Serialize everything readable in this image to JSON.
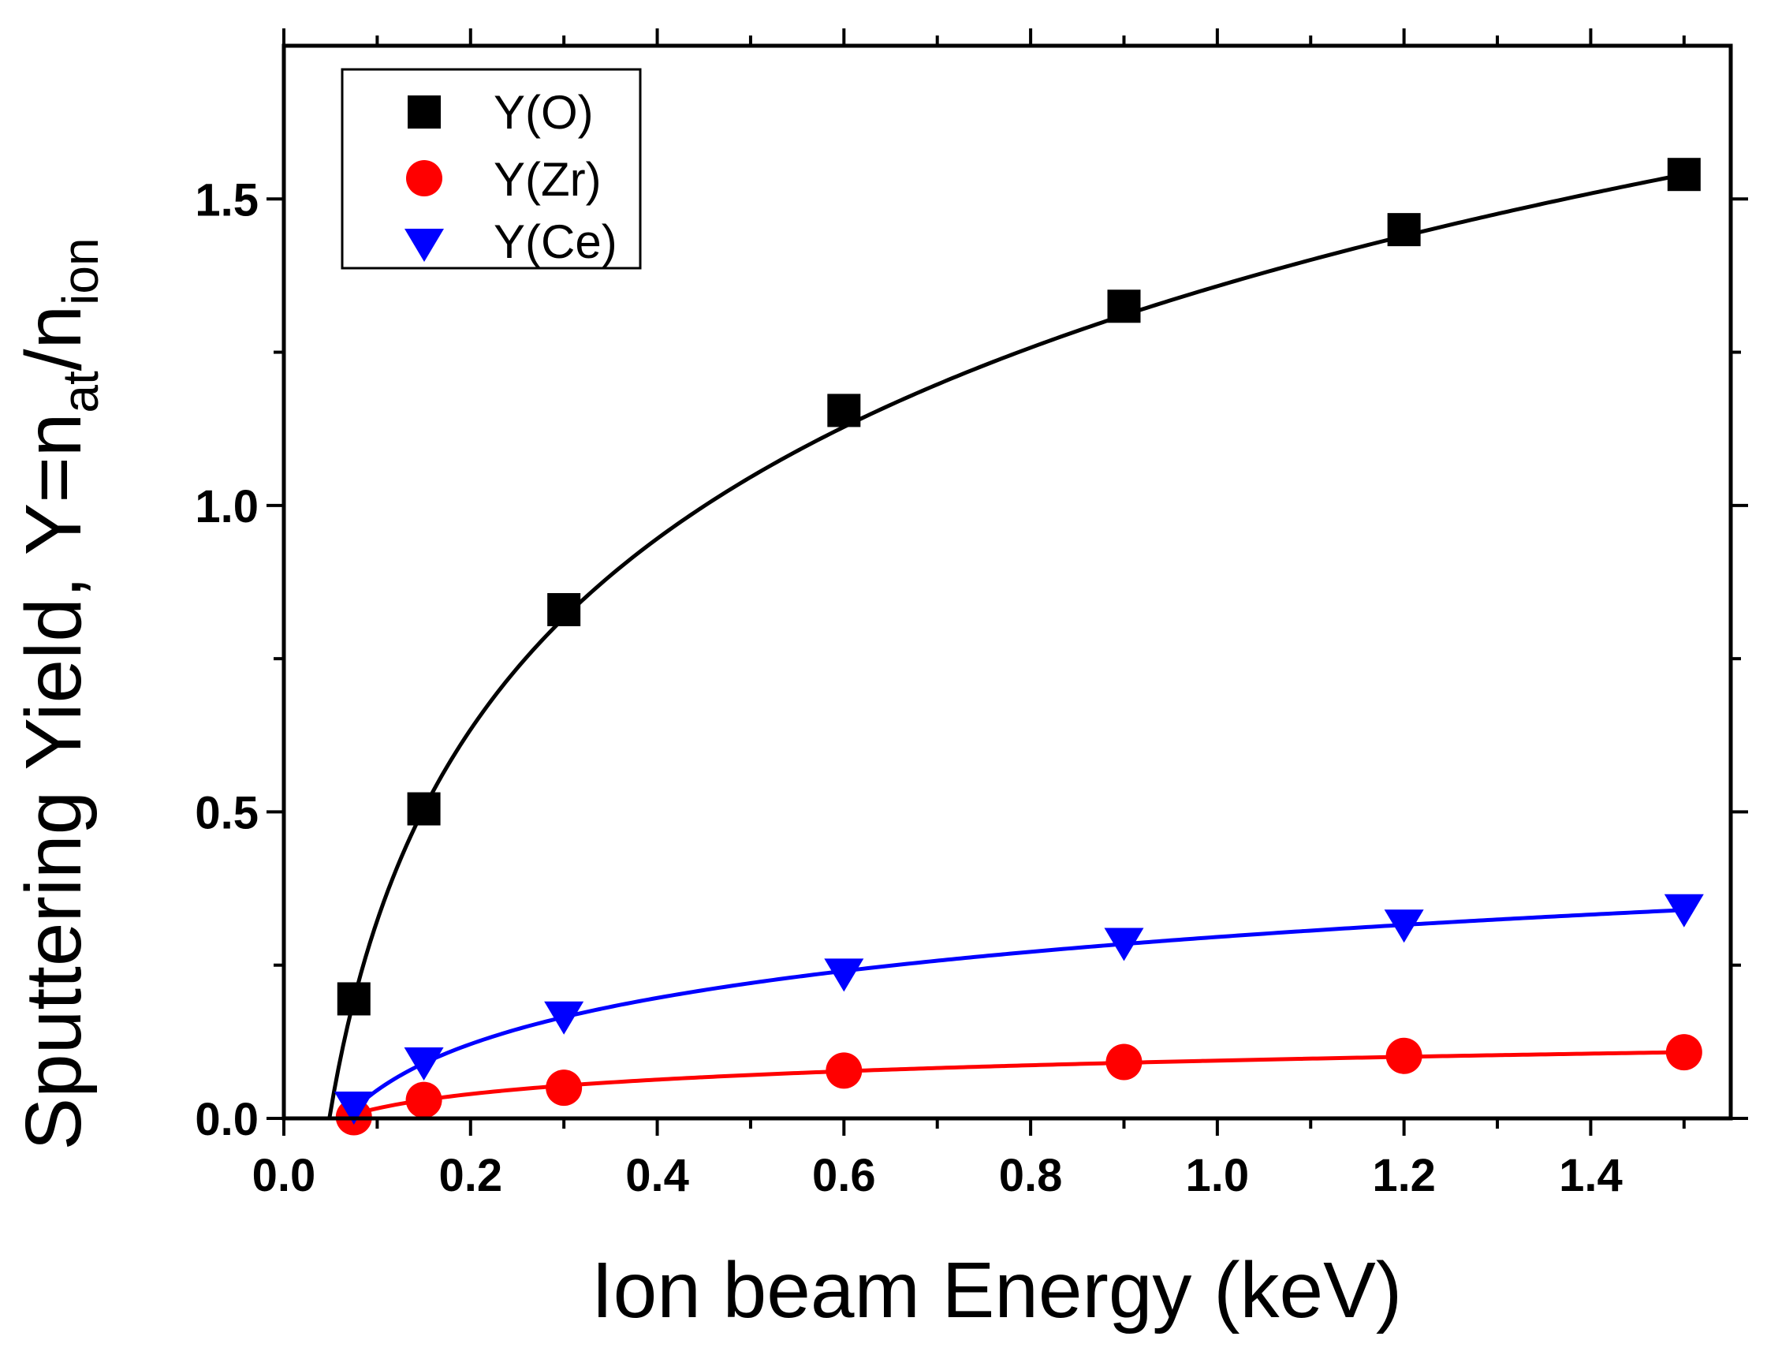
{
  "chart_data": {
    "type": "scatter",
    "title": "",
    "xlabel": "Ion beam Energy (keV)",
    "ylabel": {
      "main": "Sputtering Yield,  Y=n",
      "sub1": "at",
      "mid": "/n",
      "sub2": "ion"
    },
    "xlim": [
      0.0,
      1.55
    ],
    "ylim": [
      0.0,
      1.75
    ],
    "xticks": [
      0.0,
      0.2,
      0.4,
      0.6,
      0.8,
      1.0,
      1.2,
      1.4
    ],
    "xtick_labels": [
      "0.0",
      "0.2",
      "0.4",
      "0.6",
      "0.8",
      "1.0",
      "1.2",
      "1.4"
    ],
    "yticks": [
      0.0,
      0.5,
      1.0,
      1.5
    ],
    "ytick_labels": [
      "0.0",
      "0.5",
      "1.0",
      "1.5"
    ],
    "legend_position": "top-left",
    "series": [
      {
        "name": "Y(O)",
        "marker": "square",
        "color": "#000000",
        "x": [
          0.075,
          0.15,
          0.3,
          0.6,
          0.9,
          1.2,
          1.5
        ],
        "y": [
          0.195,
          0.505,
          0.83,
          1.155,
          1.325,
          1.45,
          1.54
        ]
      },
      {
        "name": "Y(Zr)",
        "marker": "circle",
        "color": "#ff0000",
        "x": [
          0.075,
          0.15,
          0.3,
          0.6,
          0.9,
          1.2,
          1.5
        ],
        "y": [
          0.002,
          0.03,
          0.05,
          0.078,
          0.092,
          0.102,
          0.108
        ]
      },
      {
        "name": "Y(Ce)",
        "marker": "triangle-down",
        "color": "#0000ff",
        "x": [
          0.075,
          0.15,
          0.3,
          0.6,
          0.9,
          1.2,
          1.5
        ],
        "y": [
          0.018,
          0.09,
          0.165,
          0.235,
          0.285,
          0.315,
          0.34
        ]
      }
    ]
  }
}
